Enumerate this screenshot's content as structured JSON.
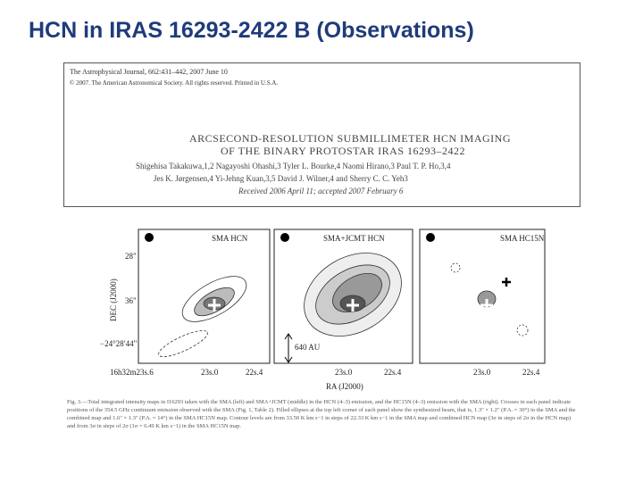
{
  "title": "HCN in IRAS 16293-2422  B (Observations)",
  "header": {
    "journal": "The Astrophysical Journal, 662:431–442, 2007 June 10",
    "copyright": "© 2007. The American Astronomical Society. All rights reserved. Printed in U.S.A.",
    "paper_title": [
      "ARCSECOND-RESOLUTION SUBMILLIMETER HCN IMAGING",
      "OF THE BINARY PROTOSTAR IRAS 16293–2422"
    ],
    "authors": [
      "Shigehisa Takakuwa,1,2 Nagayoshi Ohashi,3 Tyler L. Bourke,4 Naomi Hirano,3 Paul T. P. Ho,3,4",
      "Jes K. Jørgensen,4 Yi-Jehng Kuan,3,5 David J. Wilner,4 and Sherry C. C. Yeh3"
    ],
    "received": "Received 2006 April 11; accepted 2007 February 6"
  },
  "figure": {
    "panels": [
      "SMA HCN",
      "SMA+JCMT HCN",
      "SMA HC15N"
    ],
    "y_label": "DEC (J2000)",
    "x_label": "RA (J2000)",
    "y_ticks": [
      "28\"",
      "36\"",
      "−24°28′44\""
    ],
    "x_ticks": [
      [
        "16h32m23s.6",
        "23s.0",
        "22s.4"
      ],
      [
        "23s.0",
        "22s.4"
      ],
      [
        "23s.0",
        "22s.4"
      ]
    ],
    "scale_bar": "640 AU",
    "caption": "Fig. 3.—Total integrated intensity maps in I16293 taken with the SMA (left) and SMA+JCMT (middle) in the HCN (4–3) emission, and the HC15N (4–3) emission with the SMA (right). Crosses in each panel indicate positions of the 354.5 GHz continuum emission observed with the SMA (Fig. 1, Table 2). Filled ellipses at the top left corner of each panel show the synthesized beam, that is, 1.3″ × 1.2″ (P.A. = 30°) in the SMA and the combined map and 1.6″ × 1.3″ (P.A. = 14°) in the SMA HC15N map. Contour levels are from 33.50 K km s−1 in steps of 22.33 K km s−1 in the SMA map and combined HCN map (3σ in steps of 2σ in the HCN map) and from 3σ in steps of 2σ (1σ = 6.49 K km s−1) in the SMA HC15N map."
  }
}
